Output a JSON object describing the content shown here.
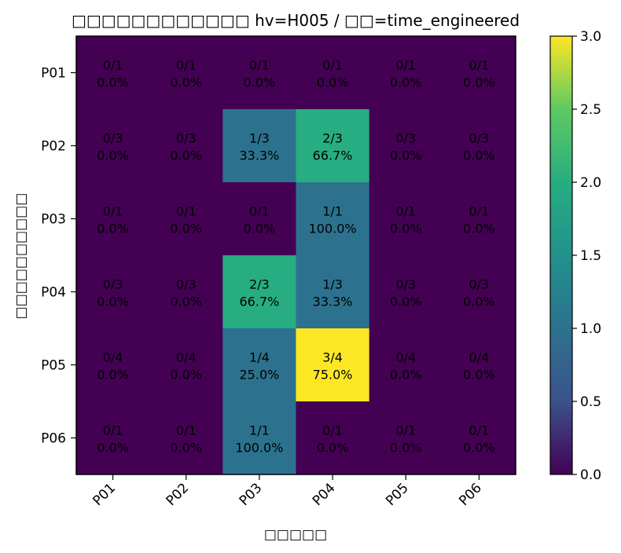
{
  "chart_data": {
    "type": "heatmap",
    "title": "□□□□□□□□□□□□ hv=H005 / □□=time_engineered",
    "xlabel": "□□□□□",
    "ylabel": "□□□□□□□□□□",
    "x_categories": [
      "P01",
      "P02",
      "P03",
      "P04",
      "P05",
      "P06"
    ],
    "y_categories": [
      "P01",
      "P02",
      "P03",
      "P04",
      "P05",
      "P06"
    ],
    "values": [
      [
        0,
        0,
        0,
        0,
        0,
        0
      ],
      [
        0,
        0,
        1,
        2,
        0,
        0
      ],
      [
        0,
        0,
        0,
        1,
        0,
        0
      ],
      [
        0,
        0,
        2,
        1,
        0,
        0
      ],
      [
        0,
        0,
        1,
        3,
        0,
        0
      ],
      [
        0,
        0,
        1,
        0,
        0,
        0
      ]
    ],
    "cell_labels": [
      [
        [
          "0/1",
          "0.0%"
        ],
        [
          "0/1",
          "0.0%"
        ],
        [
          "0/1",
          "0.0%"
        ],
        [
          "0/1",
          "0.0%"
        ],
        [
          "0/1",
          "0.0%"
        ],
        [
          "0/1",
          "0.0%"
        ]
      ],
      [
        [
          "0/3",
          "0.0%"
        ],
        [
          "0/3",
          "0.0%"
        ],
        [
          "1/3",
          "33.3%"
        ],
        [
          "2/3",
          "66.7%"
        ],
        [
          "0/3",
          "0.0%"
        ],
        [
          "0/3",
          "0.0%"
        ]
      ],
      [
        [
          "0/1",
          "0.0%"
        ],
        [
          "0/1",
          "0.0%"
        ],
        [
          "0/1",
          "0.0%"
        ],
        [
          "1/1",
          "100.0%"
        ],
        [
          "0/1",
          "0.0%"
        ],
        [
          "0/1",
          "0.0%"
        ]
      ],
      [
        [
          "0/3",
          "0.0%"
        ],
        [
          "0/3",
          "0.0%"
        ],
        [
          "2/3",
          "66.7%"
        ],
        [
          "1/3",
          "33.3%"
        ],
        [
          "0/3",
          "0.0%"
        ],
        [
          "0/3",
          "0.0%"
        ]
      ],
      [
        [
          "0/4",
          "0.0%"
        ],
        [
          "0/4",
          "0.0%"
        ],
        [
          "1/4",
          "25.0%"
        ],
        [
          "3/4",
          "75.0%"
        ],
        [
          "0/4",
          "0.0%"
        ],
        [
          "0/4",
          "0.0%"
        ]
      ],
      [
        [
          "0/1",
          "0.0%"
        ],
        [
          "0/1",
          "0.0%"
        ],
        [
          "1/1",
          "100.0%"
        ],
        [
          "0/1",
          "0.0%"
        ],
        [
          "0/1",
          "0.0%"
        ],
        [
          "0/1",
          "0.0%"
        ]
      ]
    ],
    "colormap": "viridis",
    "colorbar": {
      "range": [
        0,
        3
      ],
      "ticks": [
        0.0,
        0.5,
        1.0,
        1.5,
        2.0,
        2.5,
        3.0
      ],
      "tick_labels": [
        "0.0",
        "0.5",
        "1.0",
        "1.5",
        "2.0",
        "2.5",
        "3.0"
      ]
    }
  }
}
